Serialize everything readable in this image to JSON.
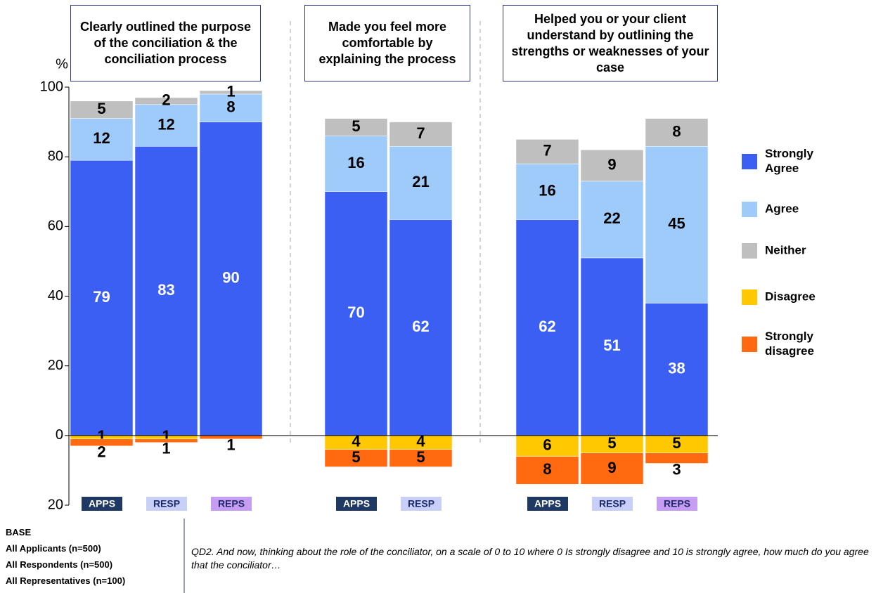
{
  "chart_data": {
    "type": "stacked-bar",
    "y_label": "%",
    "ylim": [
      -20,
      100
    ],
    "yticks": [
      {
        "value": -20,
        "label": "20"
      },
      0,
      20,
      40,
      60,
      80,
      100
    ],
    "groups": [
      {
        "title": "Clearly outlined the purpose of the conciliation & the conciliation process",
        "categories": [
          "APPS",
          "RESP",
          "REPS"
        ]
      },
      {
        "title": "Made you feel more comfortable by explaining the process",
        "categories": [
          "APPS",
          "RESP"
        ]
      },
      {
        "title": "Helped you or your client understand by outlining the strengths or weaknesses of your case",
        "categories": [
          "APPS",
          "RESP",
          "REPS"
        ]
      }
    ],
    "category_colors": {
      "APPS": "#1f3864",
      "RESP": "#c9d0f7",
      "REPS": "#c59df2"
    },
    "series": [
      {
        "name": "Strongly Agree",
        "color": "#3b5ff2",
        "values": [
          79,
          83,
          90,
          70,
          62,
          62,
          51,
          38
        ]
      },
      {
        "name": "Agree",
        "color": "#9fcbfa",
        "values": [
          12,
          12,
          8,
          16,
          21,
          16,
          22,
          45
        ]
      },
      {
        "name": "Neither",
        "color": "#bfbfbf",
        "values": [
          5,
          2,
          1,
          5,
          7,
          7,
          9,
          8
        ]
      },
      {
        "name": "Disagree",
        "color": "#ffc800",
        "values": [
          -1,
          -1,
          0,
          -4,
          -4,
          -6,
          -5,
          -5
        ],
        "value_labels": [
          "1",
          "1",
          null,
          "4",
          "4",
          "6",
          "5",
          "5"
        ]
      },
      {
        "name": "Strongly disagree",
        "color": "#ff6a10",
        "values": [
          -2,
          -1,
          -1,
          -5,
          -5,
          -8,
          -9,
          -3
        ],
        "value_labels": [
          "2",
          "1",
          "1",
          "5",
          "5",
          "8",
          "9",
          "3"
        ]
      }
    ],
    "notes": {
      "base": [
        "BASE",
        "All Applicants (n=500)",
        "All Respondents (n=500)",
        "All Representatives (n=100)"
      ],
      "question": "QD2. And now, thinking about the role of the conciliator, on a scale of 0 to 10 where 0 Is strongly disagree and 10 is strongly agree, how much do you agree that the conciliator…"
    }
  }
}
